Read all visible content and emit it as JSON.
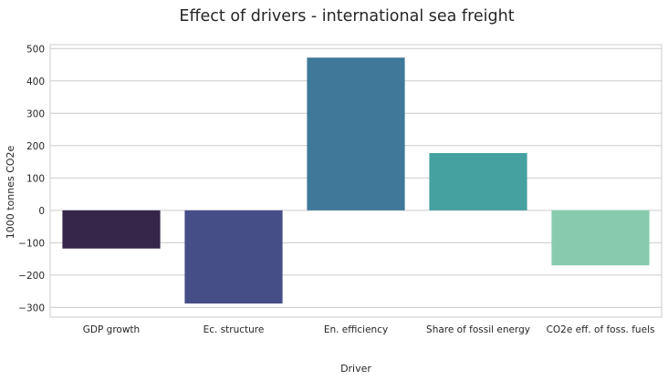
{
  "chart_data": {
    "type": "bar",
    "title": "Effect of drivers - international sea freight",
    "xlabel": "Driver",
    "ylabel": "1000 tonnes CO2e",
    "categories": [
      "GDP growth",
      "Ec. structure",
      "En. efficiency",
      "Share of fossil energy",
      "CO2e eff. of foss. fuels"
    ],
    "values": [
      -118,
      -288,
      472,
      177,
      -170
    ],
    "colors": [
      "#35264a",
      "#464e88",
      "#3f7899",
      "#45a0a0",
      "#86cbad"
    ],
    "ylim": [
      -330,
      512
    ],
    "yticks": [
      -300,
      -200,
      -100,
      0,
      100,
      200,
      300,
      400,
      500
    ],
    "ytick_labels": [
      "−300",
      "−200",
      "−100",
      "0",
      "100",
      "200",
      "300",
      "400",
      "500"
    ],
    "grid": true,
    "grid_axis": "y",
    "legend": false,
    "style": {
      "background": "#ffffff",
      "grid_color": "#cccccc",
      "frame_color": "#cccccc",
      "text_color": "#262626"
    }
  }
}
